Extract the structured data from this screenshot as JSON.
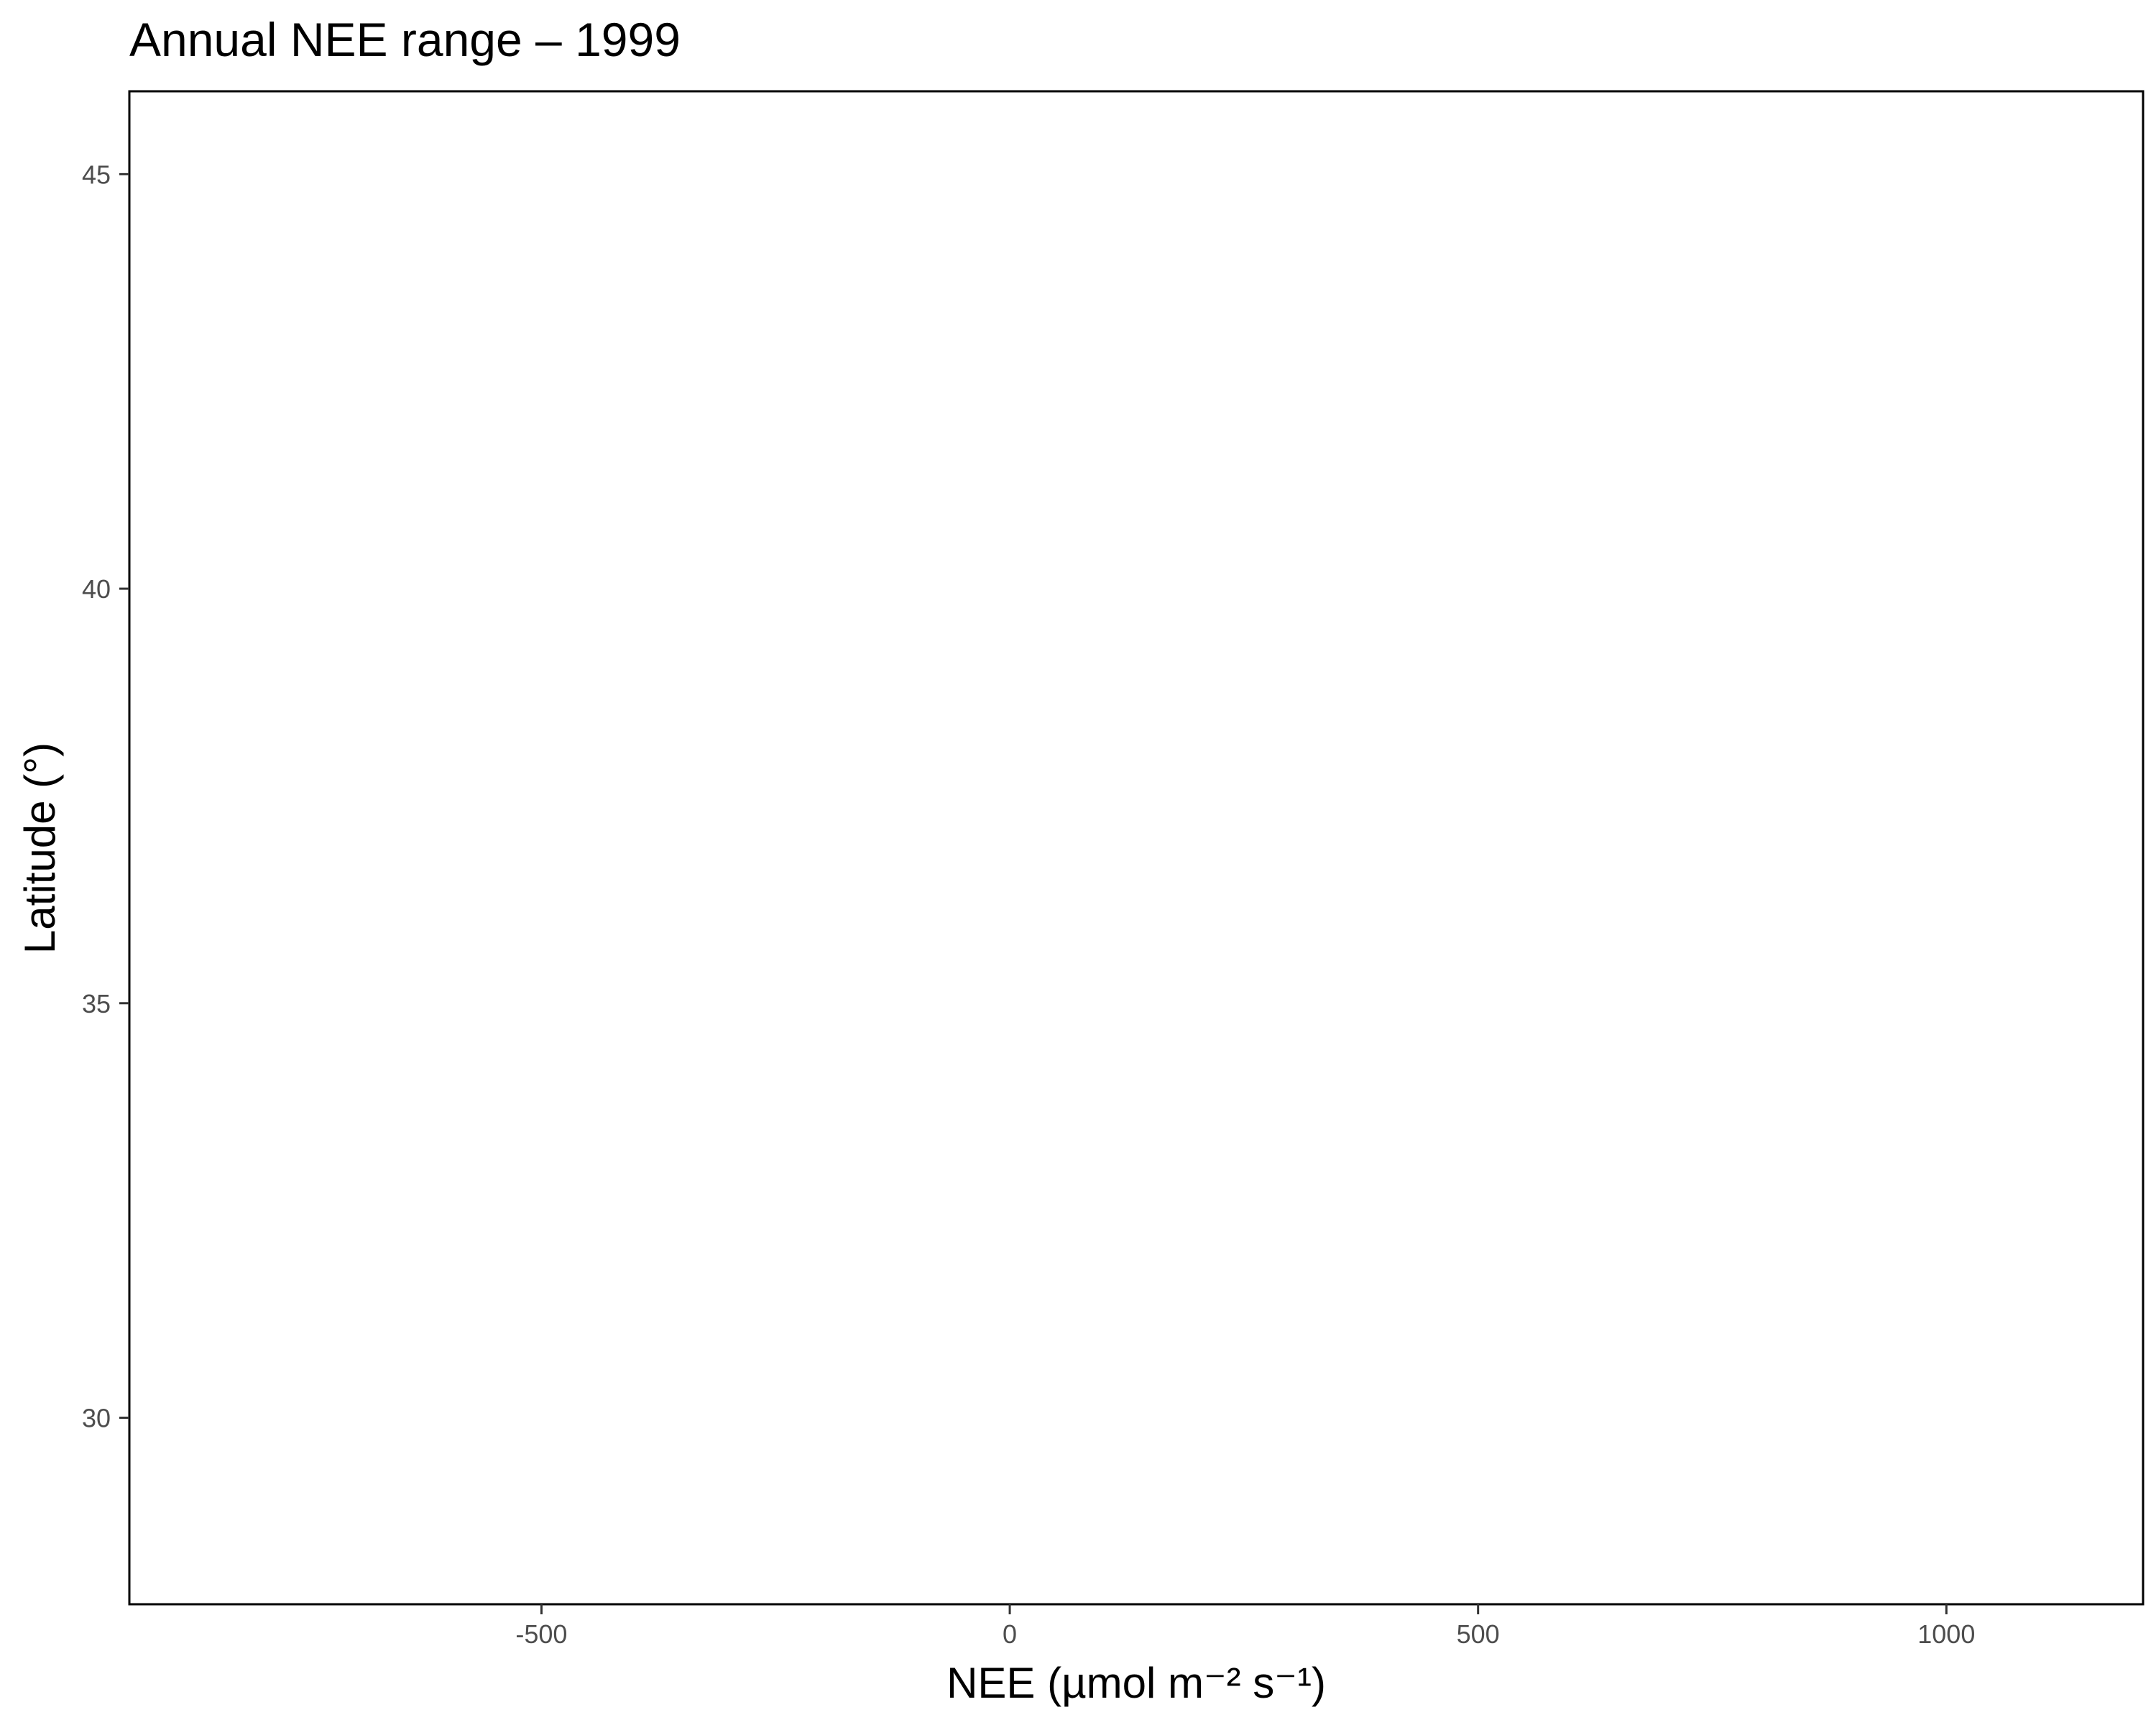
{
  "chart_data": {
    "type": "scatter",
    "title": "Annual NEE range – 1999",
    "xlabel": "NEE (µmol m⁻² s⁻¹)",
    "ylabel": "Latitude (°)",
    "xlim": [
      -940,
      1210
    ],
    "ylim": [
      27.75,
      46.0
    ],
    "x_ticks": [
      -500,
      0,
      500,
      1000
    ],
    "y_ticks": [
      30,
      35,
      40,
      45
    ],
    "x_tick_labels": [
      "-500",
      "0",
      "500",
      "1000"
    ],
    "y_tick_labels": [
      "30",
      "35",
      "40",
      "45"
    ],
    "series": [],
    "grid": false,
    "legend": "none",
    "colors": {
      "background": "#ffffff",
      "axis": "#000000",
      "tick_text": "#4d4d4d"
    }
  }
}
